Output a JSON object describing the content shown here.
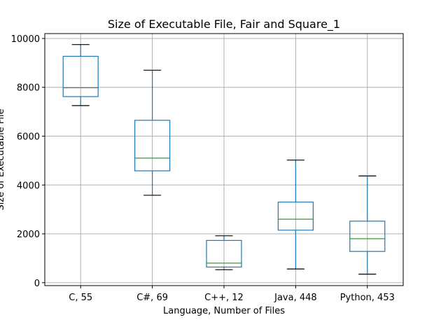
{
  "chart_data": {
    "type": "box",
    "title": "Size of Executable File, Fair and Square_1",
    "xlabel": "Language, Number of Files",
    "ylabel": "Size of Executable File",
    "ylim": [
      -120,
      10200
    ],
    "yticks": [
      0,
      2000,
      4000,
      6000,
      8000,
      10000
    ],
    "grid": true,
    "categories": [
      "C, 55",
      "C#, 69",
      "C++, 12",
      "Java, 448",
      "Python, 453"
    ],
    "boxes": [
      {
        "category": "C, 55",
        "whisker_low": 7250,
        "q1": 7620,
        "median": 7980,
        "q3": 9270,
        "whisker_high": 9750
      },
      {
        "category": "C#, 69",
        "whisker_low": 3580,
        "q1": 4580,
        "median": 5100,
        "q3": 6650,
        "whisker_high": 8700
      },
      {
        "category": "C++, 12",
        "whisker_low": 530,
        "q1": 640,
        "median": 800,
        "q3": 1730,
        "whisker_high": 1920
      },
      {
        "category": "Java, 448",
        "whisker_low": 560,
        "q1": 2150,
        "median": 2600,
        "q3": 3300,
        "whisker_high": 5020
      },
      {
        "category": "Python, 453",
        "whisker_low": 350,
        "q1": 1280,
        "median": 1800,
        "q3": 2520,
        "whisker_high": 4370
      }
    ],
    "colors": {
      "box": "#1f77b4",
      "median": "#2ca02c",
      "whisker_cap": "#000000",
      "grid": "#b0b0b0"
    }
  }
}
